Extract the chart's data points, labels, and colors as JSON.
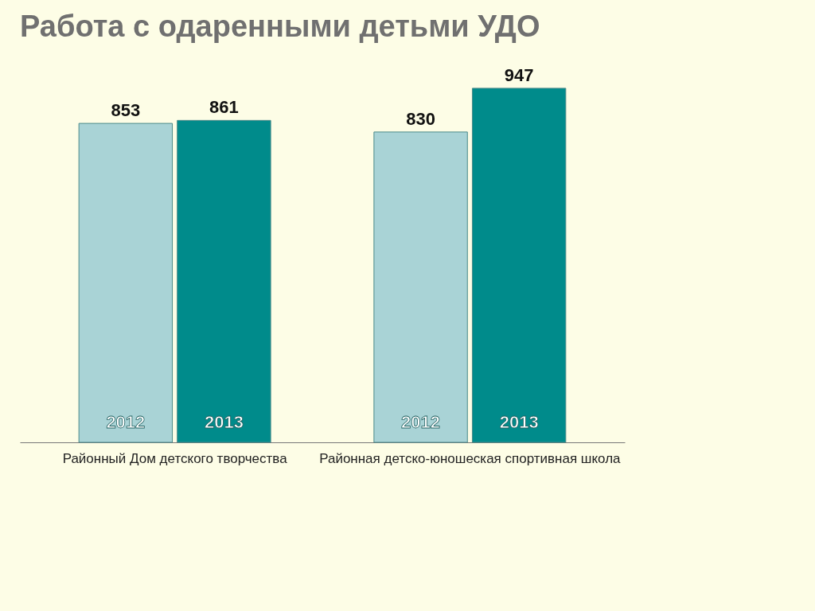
{
  "chart_data": {
    "type": "bar",
    "title": "Работа с одаренными детьми УДО",
    "categories": [
      "Районный Дом детского творчества",
      "Районная детско-юношеская спортивная школа"
    ],
    "series": [
      {
        "name": "2012",
        "color": "#a9d3d6",
        "values": [
          853,
          830
        ]
      },
      {
        "name": "2013",
        "color": "#008b8b",
        "values": [
          861,
          947
        ]
      }
    ],
    "data_labels": true,
    "legend": false,
    "grid": false
  }
}
